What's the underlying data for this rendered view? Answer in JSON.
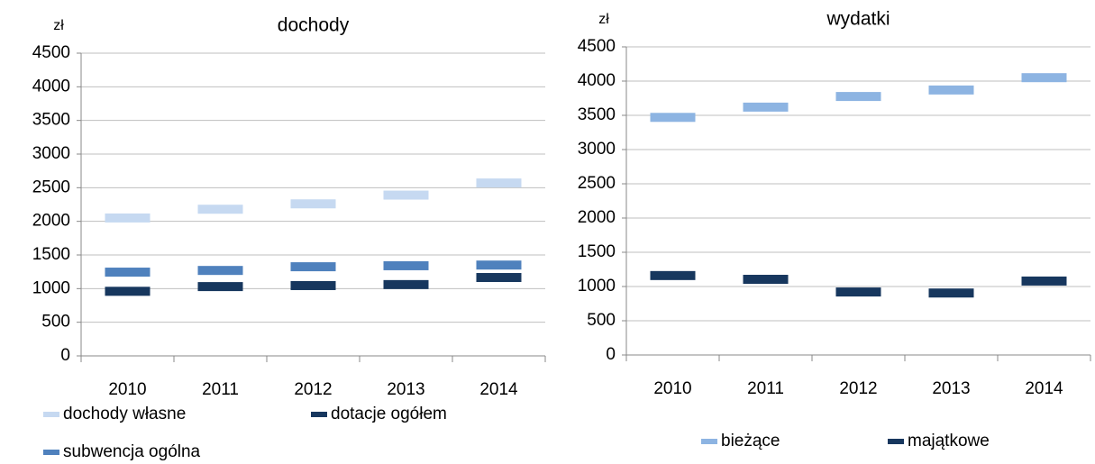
{
  "chart_data": [
    {
      "type": "line",
      "title": "dochody",
      "y_label": "zł",
      "categories": [
        "2010",
        "2011",
        "2012",
        "2013",
        "2014"
      ],
      "series": [
        {
          "name": "dochody własne",
          "color": "#c6d9f1",
          "values": [
            2050,
            2180,
            2260,
            2390,
            2570
          ]
        },
        {
          "name": "dotacje ogółem",
          "color": "#17375e",
          "values": [
            960,
            1030,
            1045,
            1060,
            1165
          ]
        },
        {
          "name": "subwencja ogólna",
          "color": "#4f81bd",
          "values": [
            1245,
            1270,
            1325,
            1340,
            1350
          ]
        }
      ],
      "ylim": [
        0,
        4500
      ],
      "yticks": [
        0,
        500,
        1000,
        1500,
        2000,
        2500,
        3000,
        3500,
        4000,
        4500
      ],
      "grid": true,
      "legend": "bottom"
    },
    {
      "type": "line",
      "title": "wydatki",
      "y_label": "zł",
      "categories": [
        "2010",
        "2011",
        "2012",
        "2013",
        "2014"
      ],
      "series": [
        {
          "name": "bieżące",
          "color": "#8db4e2",
          "values": [
            3470,
            3620,
            3775,
            3870,
            4050
          ]
        },
        {
          "name": "majątkowe",
          "color": "#17375e",
          "values": [
            1160,
            1105,
            920,
            905,
            1080
          ]
        }
      ],
      "ylim": [
        0,
        4500
      ],
      "yticks": [
        0,
        500,
        1000,
        1500,
        2000,
        2500,
        3000,
        3500,
        4000,
        4500
      ],
      "grid": true,
      "legend": "bottom"
    }
  ]
}
